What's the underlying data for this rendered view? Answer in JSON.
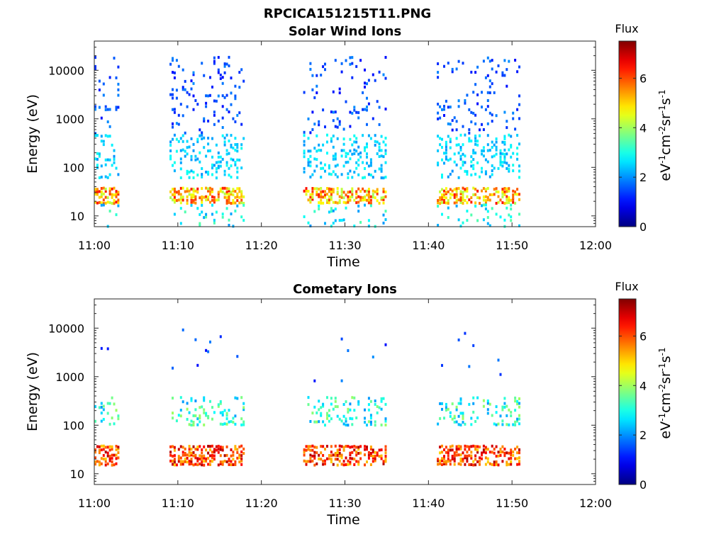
{
  "figure_title": "RPCICA151215T11.PNG",
  "colorbar": {
    "title": "Flux",
    "label_main": "eV",
    "label_units": [
      "-1",
      "cm",
      "-2",
      "sr",
      "-1",
      "s",
      "-1"
    ],
    "ticks": [
      0,
      2,
      4,
      6
    ],
    "range": [
      0,
      7.5
    ],
    "colormap": "jet"
  },
  "chart_data": [
    {
      "type": "heatmap",
      "title": "Solar Wind Ions",
      "xlabel": "Time",
      "ylabel": "Energy (eV)",
      "xticks": [
        "11:00",
        "11:10",
        "11:20",
        "11:30",
        "11:40",
        "11:50",
        "12:00"
      ],
      "xlim": [
        "11:00",
        "12:00"
      ],
      "yscale": "log",
      "ylim": [
        6,
        40000
      ],
      "yticks": [
        10,
        100,
        1000,
        10000
      ],
      "ytick_labels": [
        "10",
        "100",
        "1000",
        "10000"
      ],
      "grid": false,
      "active_intervals": [
        [
          "11:00",
          "11:03"
        ],
        [
          "11:09",
          "11:18"
        ],
        [
          "11:25",
          "11:35"
        ],
        [
          "11:41",
          "11:51"
        ]
      ],
      "features": [
        {
          "component": "sparse high-energy counts",
          "energy_eV": [
            500,
            20000
          ],
          "flux": [
            1,
            2
          ]
        },
        {
          "component": "intermediate counts",
          "energy_eV": [
            60,
            500
          ],
          "flux": [
            2,
            3
          ]
        },
        {
          "component": "low-energy peak",
          "energy_eV": [
            18,
            40
          ],
          "flux": [
            4,
            6.5
          ]
        },
        {
          "component": "near-threshold counts",
          "energy_eV": [
            6,
            18
          ],
          "flux": [
            2,
            3.5
          ]
        }
      ]
    },
    {
      "type": "heatmap",
      "title": "Cometary Ions",
      "xlabel": "Time",
      "ylabel": "Energy (eV)",
      "xticks": [
        "11:00",
        "11:10",
        "11:20",
        "11:30",
        "11:40",
        "11:50",
        "12:00"
      ],
      "xlim": [
        "11:00",
        "12:00"
      ],
      "yscale": "log",
      "ylim": [
        6,
        40000
      ],
      "yticks": [
        10,
        100,
        1000,
        10000
      ],
      "ytick_labels": [
        "10",
        "100",
        "1000",
        "10000"
      ],
      "grid": false,
      "active_intervals": [
        [
          "11:00",
          "11:03"
        ],
        [
          "11:09",
          "11:18"
        ],
        [
          "11:25",
          "11:35"
        ],
        [
          "11:41",
          "11:51"
        ]
      ],
      "features": [
        {
          "component": "dispersed tail",
          "energy_eV": [
            100,
            400
          ],
          "flux": [
            2,
            4
          ]
        },
        {
          "component": "cometary ion peak",
          "energy_eV": [
            15,
            40
          ],
          "flux": [
            5,
            7.2
          ]
        },
        {
          "component": "isolated high-energy counts",
          "energy_eV": [
            800,
            10000
          ],
          "flux": [
            1,
            2
          ]
        }
      ]
    }
  ]
}
